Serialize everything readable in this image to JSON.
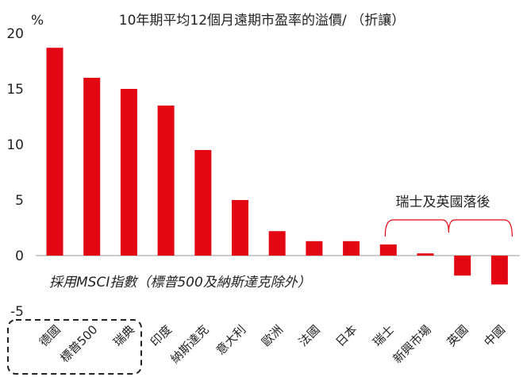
{
  "chart_data": {
    "type": "bar",
    "title": "10年期平均12個月遠期市盈率的溢價/ （折讓）",
    "unit_label": "%",
    "ylim": [
      -5,
      20
    ],
    "yticks": [
      20,
      15,
      10,
      5,
      0,
      -5
    ],
    "categories": [
      "德國",
      "標普500",
      "瑞典",
      "印度",
      "納斯達克",
      "意大利",
      "歐洲",
      "法國",
      "日本",
      "瑞士",
      "新興市場",
      "英國",
      "中國"
    ],
    "values": [
      18.7,
      16.0,
      15.0,
      13.5,
      9.5,
      5.0,
      2.2,
      1.3,
      1.3,
      1.0,
      0.2,
      -1.8,
      -2.6
    ],
    "bar_color": "#e30613",
    "annotations": {
      "note": "採用MSCI指數（標普500及納斯達克除外）",
      "bracket_label": "瑞士及英國落後"
    },
    "highlight_categories": [
      "德國",
      "標普500",
      "瑞典"
    ]
  }
}
